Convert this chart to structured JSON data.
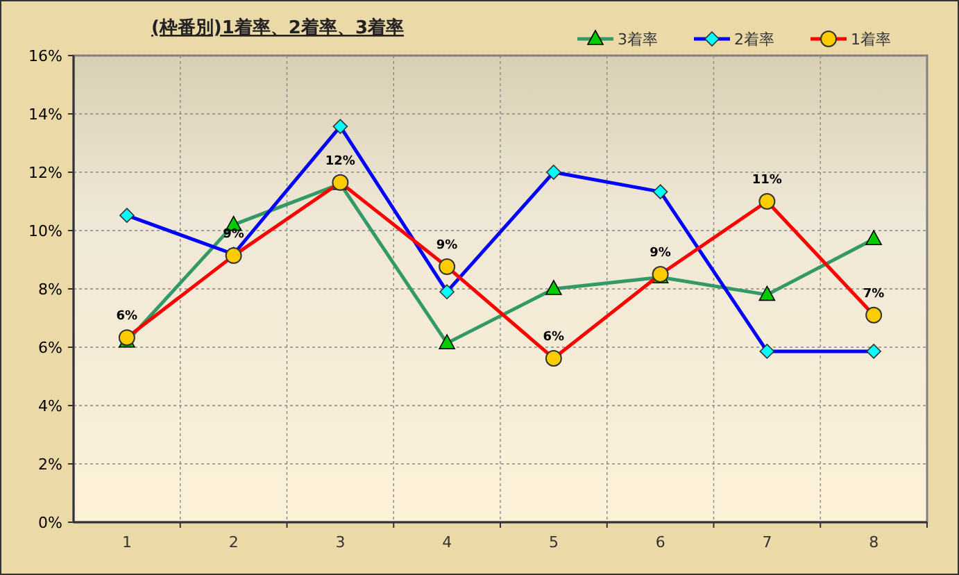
{
  "chart_data": {
    "type": "line",
    "title": "(枠番別)1着率、2着率、3着率",
    "categories": [
      "1",
      "2",
      "3",
      "4",
      "5",
      "6",
      "7",
      "8"
    ],
    "series": [
      {
        "name": "3着率",
        "color": "#339966",
        "marker": "triangle",
        "values": [
          6.2,
          10.2,
          11.6,
          6.14,
          8.0,
          8.4,
          7.8,
          9.71
        ]
      },
      {
        "name": "2着率",
        "color": "#0000ff",
        "marker": "diamond",
        "values": [
          10.52,
          9.19,
          13.57,
          7.9,
          12.0,
          11.33,
          5.86,
          5.86
        ]
      },
      {
        "name": "1着率",
        "color": "#ff0000",
        "marker": "circle",
        "values": [
          6.33,
          9.14,
          11.65,
          8.76,
          5.62,
          8.5,
          11.0,
          7.1
        ],
        "value_labels": [
          "6%",
          "9%",
          "12%",
          "9%",
          "6%",
          "9%",
          "11%",
          "7%"
        ]
      }
    ],
    "ylim": [
      0,
      16
    ],
    "yticks": [
      {
        "value": 0,
        "label": "0%"
      },
      {
        "value": 2,
        "label": "2%"
      },
      {
        "value": 4,
        "label": "4%"
      },
      {
        "value": 6,
        "label": "6%"
      },
      {
        "value": 8,
        "label": "8%"
      },
      {
        "value": 10,
        "label": "10%"
      },
      {
        "value": 12,
        "label": "12%"
      },
      {
        "value": 14,
        "label": "14%"
      },
      {
        "value": 16,
        "label": "16%"
      }
    ],
    "grid": true,
    "legend": "top right",
    "line_style": "solid"
  }
}
